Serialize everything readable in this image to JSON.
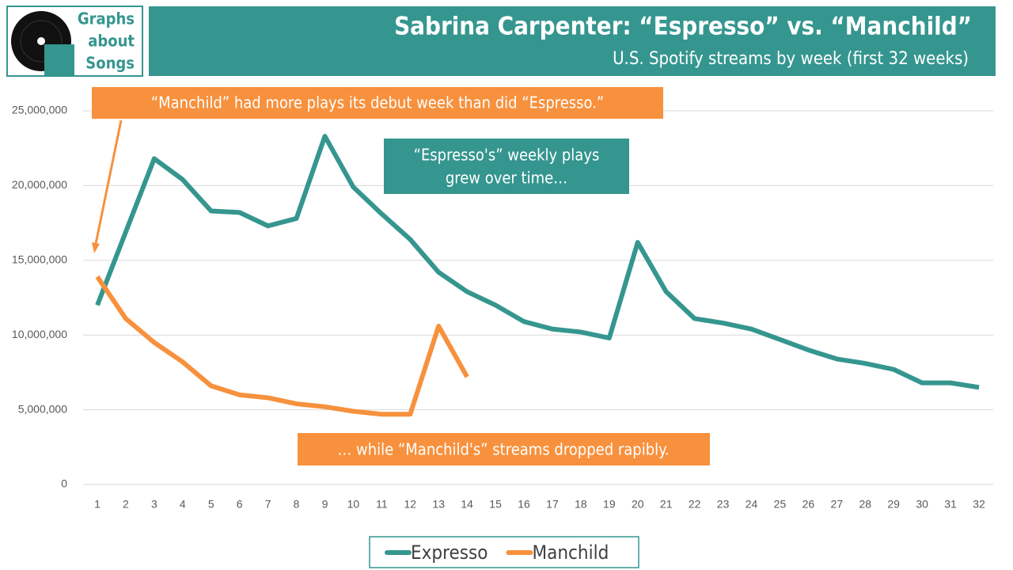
{
  "chart_data": {
    "type": "line",
    "logo": [
      "Graphs",
      "about",
      "Songs"
    ],
    "title": "Sabrina Carpenter: “Espresso” vs. “Manchild”",
    "subtitle": "U.S. Spotify streams by week (first 32 weeks)",
    "annotations": [
      [
        "“Manchild” had more plays its debut week than did “Espresso.”"
      ],
      [
        "“Espresso's” weekly plays",
        "grew over time…"
      ],
      [
        "… while “Manchild's” streams dropped rapibly."
      ]
    ],
    "categories": [
      "1",
      "2",
      "3",
      "4",
      "5",
      "6",
      "7",
      "8",
      "9",
      "10",
      "11",
      "12",
      "13",
      "14",
      "15",
      "16",
      "17",
      "18",
      "19",
      "20",
      "21",
      "22",
      "23",
      "24",
      "25",
      "26",
      "27",
      "28",
      "29",
      "30",
      "31",
      "32"
    ],
    "series": [
      {
        "name": "Expresso",
        "color": "#35968f",
        "values": [
          12000000,
          16900000,
          21800000,
          20400000,
          18300000,
          18200000,
          17300000,
          17800000,
          23300000,
          19900000,
          18100000,
          16400000,
          14200000,
          12900000,
          12000000,
          10900000,
          10400000,
          10200000,
          9800000,
          16200000,
          12900000,
          11100000,
          10800000,
          10400000,
          9700000,
          9000000,
          8400000,
          8100000,
          7700000,
          6800000,
          6800000,
          6500000
        ]
      },
      {
        "name": "Manchild",
        "color": "#f7913d",
        "values": [
          13900000,
          11100000,
          9500000,
          8200000,
          6600000,
          6000000,
          5800000,
          5400000,
          5200000,
          4900000,
          4700000,
          4700000,
          10600000,
          7200000,
          null,
          null,
          null,
          null,
          null,
          null,
          null,
          null,
          null,
          null,
          null,
          null,
          null,
          null,
          null,
          null,
          null,
          null
        ]
      }
    ],
    "ylim": [
      0,
      25000000
    ],
    "yticks": [
      0,
      {
        "value": 5000000,
        "label": "5,000,000"
      },
      {
        "value": 10000000,
        "label": "10,000,000"
      },
      {
        "value": 15000000,
        "label": "15,000,000"
      },
      {
        "value": 20000000,
        "label": "20,000,000"
      },
      {
        "value": 25000000,
        "label": "25,000,000"
      }
    ],
    "grid": true
  }
}
